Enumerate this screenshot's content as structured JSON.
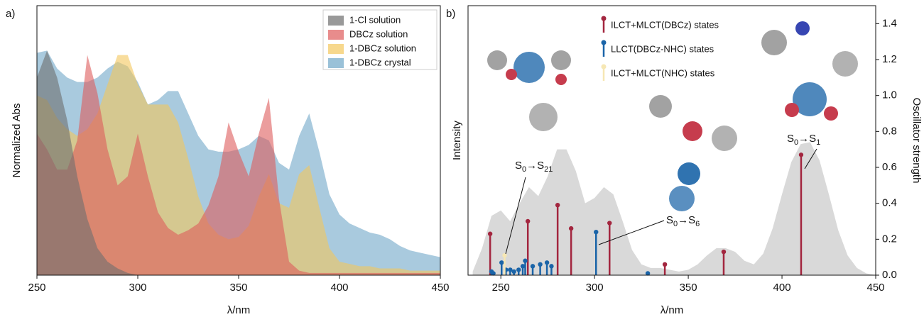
{
  "chart_data": [
    {
      "type": "area",
      "panel_label": "a)",
      "y_label": "Normalized Abs",
      "x_label": "λ/nm",
      "x": [
        250,
        255,
        260,
        265,
        270,
        275,
        280,
        285,
        290,
        295,
        300,
        305,
        310,
        315,
        320,
        325,
        330,
        335,
        340,
        345,
        350,
        355,
        360,
        365,
        370,
        375,
        380,
        385,
        390,
        395,
        400,
        405,
        410,
        415,
        420,
        425,
        430,
        435,
        440,
        445,
        450
      ],
      "xlim": [
        250,
        450
      ],
      "xticks": [
        250,
        300,
        350,
        400,
        450
      ],
      "ylim": [
        0,
        1.2
      ],
      "series": [
        {
          "name": "1-Cl solution",
          "color": "#6e6e6e",
          "values": [
            0.88,
            1.0,
            0.88,
            0.69,
            0.44,
            0.25,
            0.12,
            0.06,
            0.03,
            0.01,
            0,
            0,
            0,
            0,
            0,
            0,
            0,
            0,
            0,
            0,
            0,
            0,
            0,
            0,
            0,
            0,
            0,
            0,
            0,
            0,
            0,
            0,
            0,
            0,
            0,
            0,
            0,
            0,
            0,
            0,
            0
          ]
        },
        {
          "name": "DBCz solution",
          "color": "#de5b5b",
          "values": [
            0.63,
            0.56,
            0.47,
            0.47,
            0.6,
            0.98,
            0.81,
            0.56,
            0.4,
            0.44,
            0.63,
            0.44,
            0.28,
            0.21,
            0.18,
            0.2,
            0.23,
            0.31,
            0.44,
            0.68,
            0.55,
            0.44,
            0.63,
            0.79,
            0.34,
            0.06,
            0.02,
            0.01,
            0.01,
            0.01,
            0.01,
            0.01,
            0.01,
            0.01,
            0.01,
            0.01,
            0.01,
            0.01,
            0.01,
            0.01,
            0.01
          ]
        },
        {
          "name": "1-DBCz solution",
          "color": "#f3c75c",
          "values": [
            0.8,
            0.78,
            0.7,
            0.65,
            0.62,
            0.65,
            0.72,
            0.85,
            0.98,
            0.98,
            0.85,
            0.76,
            0.76,
            0.76,
            0.68,
            0.52,
            0.35,
            0.23,
            0.18,
            0.16,
            0.17,
            0.22,
            0.35,
            0.45,
            0.32,
            0.3,
            0.45,
            0.49,
            0.3,
            0.12,
            0.06,
            0.05,
            0.04,
            0.04,
            0.03,
            0.03,
            0.03,
            0.02,
            0.02,
            0.02,
            0.02
          ]
        },
        {
          "name": "1-DBCz crystal",
          "color": "#6fa6c8",
          "values": [
            0.99,
            1.0,
            0.92,
            0.88,
            0.86,
            0.86,
            0.88,
            0.92,
            0.95,
            0.93,
            0.86,
            0.76,
            0.78,
            0.82,
            0.82,
            0.72,
            0.62,
            0.56,
            0.55,
            0.55,
            0.56,
            0.58,
            0.62,
            0.6,
            0.5,
            0.47,
            0.62,
            0.72,
            0.55,
            0.36,
            0.27,
            0.23,
            0.21,
            0.19,
            0.18,
            0.16,
            0.13,
            0.11,
            0.1,
            0.09,
            0.08
          ]
        }
      ]
    },
    {
      "type": "stem",
      "panel_label": "b)",
      "y_label": "Intensity",
      "y2_label": "Oscillator strength",
      "x_label": "λ/nm",
      "xlim": [
        232.5,
        450
      ],
      "xticks": [
        250,
        300,
        350,
        400,
        450
      ],
      "ylim": [
        0,
        1.5
      ],
      "y2lim": [
        0,
        1.5
      ],
      "y2ticks": [
        {
          "value": 0,
          "label": "0.0"
        },
        0.2,
        0.4,
        0.6,
        0.8,
        {
          "value": 1,
          "label": "1.0"
        },
        1.2,
        1.4
      ],
      "spectrum": {
        "color": "#d9d9d9",
        "x": [
          235,
          240,
          245,
          250,
          255,
          260,
          265,
          270,
          275,
          280,
          285,
          290,
          295,
          300,
          305,
          310,
          315,
          320,
          325,
          330,
          335,
          340,
          345,
          350,
          355,
          360,
          365,
          370,
          375,
          380,
          385,
          390,
          395,
          400,
          405,
          410,
          415,
          420,
          425,
          430,
          435,
          440,
          445,
          450
        ],
        "values": [
          0.02,
          0.15,
          0.33,
          0.36,
          0.3,
          0.4,
          0.49,
          0.44,
          0.55,
          0.7,
          0.7,
          0.58,
          0.4,
          0.43,
          0.49,
          0.45,
          0.3,
          0.14,
          0.06,
          0.04,
          0.04,
          0.03,
          0.02,
          0.03,
          0.06,
          0.11,
          0.15,
          0.15,
          0.13,
          0.08,
          0.06,
          0.12,
          0.26,
          0.45,
          0.63,
          0.73,
          0.74,
          0.64,
          0.45,
          0.25,
          0.11,
          0.04,
          0.01,
          0.0
        ]
      },
      "series": [
        {
          "name": "ILCT+MLCT(DBCz) states",
          "color": "#a3263f",
          "axis": "y2",
          "x": [
            244.3,
            264.4,
            280.3,
            287.5,
            308,
            337.5,
            368.9,
            410.2
          ],
          "values": [
            0.23,
            0.3,
            0.39,
            0.26,
            0.29,
            0.06,
            0.13,
            0.67
          ]
        },
        {
          "name": "LLCT(DBCz-NHC) states",
          "color": "#1a64a8",
          "axis": "y2",
          "x": [
            245,
            246,
            250.4,
            252.7,
            255,
            257,
            259.5,
            261.7,
            263,
            267,
            271,
            274.6,
            277,
            300.8,
            328.4
          ],
          "values": [
            0.02,
            0.01,
            0.07,
            0.03,
            0.03,
            0.02,
            0.03,
            0.05,
            0.08,
            0.05,
            0.06,
            0.07,
            0.05,
            0.24,
            0.01
          ]
        },
        {
          "name": "ILCT+MLCT(NHC) states",
          "color": "#f6e7b4",
          "axis": "y2",
          "x": [
            252
          ],
          "values": [
            0.11
          ]
        }
      ],
      "annotations": [
        {
          "parts": [
            "S",
            "0",
            "→S",
            "21"
          ]
        },
        {
          "parts": [
            "S",
            "0",
            "→S",
            "6"
          ]
        },
        {
          "parts": [
            "S",
            "0",
            "→S",
            "1"
          ]
        }
      ]
    }
  ]
}
